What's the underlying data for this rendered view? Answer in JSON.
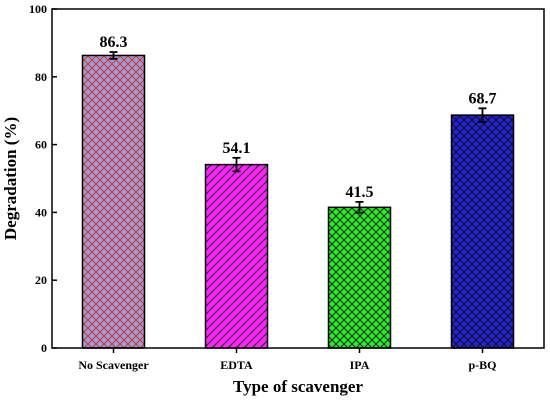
{
  "chart_data": {
    "type": "bar",
    "categories": [
      "No Scavenger",
      "EDTA",
      "IPA",
      "p-BQ"
    ],
    "values": [
      86.3,
      54.1,
      41.5,
      68.7
    ],
    "errors": [
      1.0,
      2.0,
      1.6,
      2.0
    ],
    "value_labels": [
      "86.3",
      "54.1",
      "41.5",
      "68.7"
    ],
    "xlabel": "Type of scavenger",
    "ylabel": "Degradation (%)",
    "ylim": [
      0,
      100
    ],
    "yticks": [
      0,
      20,
      40,
      60,
      80,
      100
    ],
    "grid": false,
    "bar_colors": [
      "#9a9ed8",
      "#ff22ff",
      "#22ee22",
      "#2222dd"
    ],
    "hatch_colors": [
      "#d33333",
      "#222222",
      "#222222",
      "#111111"
    ],
    "hatch_patterns": [
      "crosshatch",
      "diagonal",
      "crosshatch",
      "crosshatch"
    ]
  }
}
